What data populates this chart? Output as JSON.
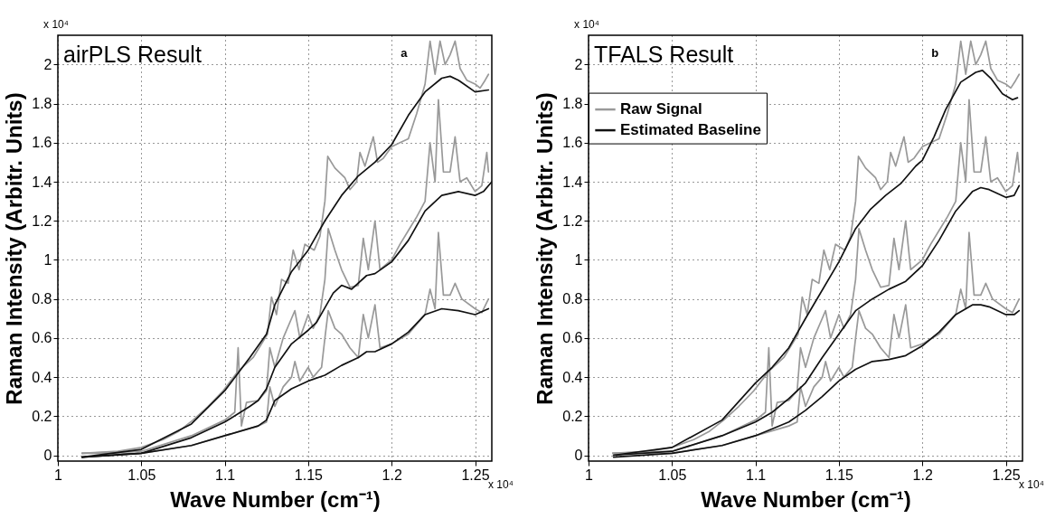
{
  "chart_data": [
    {
      "type": "line",
      "title": "airPLS Result",
      "xlabel": "Wave Number (cm⁻¹)",
      "ylabel": "Raman Intensity (Arbitr. Units)",
      "annotations": [
        "a",
        "x 10⁴",
        "x 10⁴"
      ],
      "xlim": [
        1,
        1.26
      ],
      "ylim": [
        -0.03,
        2.15
      ],
      "xticks": [
        1,
        1.05,
        1.1,
        1.15,
        1.2,
        1.25
      ],
      "yticks": [
        0,
        0.2,
        0.4,
        0.6,
        0.8,
        1,
        1.2,
        1.4,
        1.6,
        1.8,
        2
      ],
      "grid": true,
      "line_style": "solid",
      "series": [
        {
          "color": "#999999",
          "x": [
            1.0145,
            1.036,
            1.05,
            1.063,
            1.072,
            1.081,
            1.09,
            1.099,
            1.108,
            1.117,
            1.1256,
            1.128,
            1.131,
            1.134,
            1.138,
            1.141,
            1.1445,
            1.148,
            1.1536,
            1.157,
            1.16,
            1.1617,
            1.166,
            1.172,
            1.175,
            1.179,
            1.181,
            1.184,
            1.189,
            1.1915,
            1.195,
            1.2,
            1.205,
            1.21,
            1.215,
            1.22,
            1.223,
            1.226,
            1.229,
            1.232,
            1.235,
            1.238,
            1.241,
            1.245,
            1.25,
            1.253,
            1.256,
            1.258
          ],
          "values": [
            0.01,
            0.02,
            0.04,
            0.08,
            0.12,
            0.18,
            0.25,
            0.33,
            0.43,
            0.5,
            0.62,
            0.81,
            0.72,
            0.9,
            0.88,
            1.05,
            0.95,
            1.08,
            1.05,
            1.12,
            1.3,
            1.53,
            1.47,
            1.42,
            1.36,
            1.4,
            1.55,
            1.48,
            1.63,
            1.5,
            1.52,
            1.58,
            1.6,
            1.62,
            1.75,
            1.9,
            2.12,
            1.95,
            2.12,
            2.0,
            2.05,
            2.12,
            1.98,
            1.92,
            1.9,
            1.88,
            1.92,
            1.95
          ]
        },
        {
          "color": "#999999",
          "x": [
            1.0145,
            1.05,
            1.08,
            1.1,
            1.106,
            1.108,
            1.11,
            1.113,
            1.12,
            1.125,
            1.127,
            1.13,
            1.135,
            1.14,
            1.142,
            1.145,
            1.15,
            1.153,
            1.157,
            1.16,
            1.162,
            1.166,
            1.17,
            1.175,
            1.18,
            1.183,
            1.186,
            1.19,
            1.193,
            1.2,
            1.205,
            1.21,
            1.215,
            1.22,
            1.223,
            1.226,
            1.228,
            1.231,
            1.235,
            1.238,
            1.241,
            1.245,
            1.25,
            1.254,
            1.257,
            1.258
          ],
          "values": [
            0.01,
            0.02,
            0.1,
            0.18,
            0.22,
            0.55,
            0.15,
            0.27,
            0.28,
            0.33,
            0.55,
            0.45,
            0.6,
            0.7,
            0.74,
            0.6,
            0.72,
            0.65,
            0.72,
            0.9,
            1.16,
            1.05,
            0.95,
            0.86,
            0.87,
            1.11,
            0.95,
            1.2,
            0.95,
            1.0,
            1.08,
            1.15,
            1.22,
            1.3,
            1.6,
            1.4,
            1.82,
            1.45,
            1.45,
            1.63,
            1.4,
            1.42,
            1.35,
            1.38,
            1.55,
            1.45
          ]
        },
        {
          "color": "#999999",
          "x": [
            1.0145,
            1.05,
            1.08,
            1.1,
            1.12,
            1.125,
            1.127,
            1.13,
            1.135,
            1.14,
            1.142,
            1.145,
            1.15,
            1.153,
            1.158,
            1.16,
            1.162,
            1.166,
            1.17,
            1.175,
            1.18,
            1.183,
            1.186,
            1.19,
            1.193,
            1.2,
            1.21,
            1.215,
            1.22,
            1.223,
            1.226,
            1.228,
            1.231,
            1.235,
            1.238,
            1.242,
            1.25,
            1.254,
            1.258
          ],
          "values": [
            0.01,
            0.01,
            0.05,
            0.1,
            0.15,
            0.17,
            0.35,
            0.25,
            0.35,
            0.4,
            0.48,
            0.38,
            0.45,
            0.4,
            0.45,
            0.6,
            0.74,
            0.65,
            0.62,
            0.55,
            0.5,
            0.72,
            0.6,
            0.77,
            0.55,
            0.57,
            0.62,
            0.67,
            0.72,
            0.85,
            0.75,
            1.14,
            0.82,
            0.82,
            0.88,
            0.8,
            0.75,
            0.73,
            0.8
          ]
        },
        {
          "color": "#111111",
          "x": [
            1.0145,
            1.05,
            1.08,
            1.1,
            1.115,
            1.125,
            1.13,
            1.14,
            1.15,
            1.16,
            1.17,
            1.18,
            1.19,
            1.2,
            1.21,
            1.22,
            1.23,
            1.235,
            1.24,
            1.25,
            1.258
          ],
          "values": [
            -0.01,
            0.03,
            0.16,
            0.33,
            0.5,
            0.62,
            0.77,
            0.94,
            1.05,
            1.2,
            1.33,
            1.43,
            1.5,
            1.59,
            1.74,
            1.86,
            1.93,
            1.94,
            1.92,
            1.86,
            1.87
          ]
        },
        {
          "color": "#111111",
          "x": [
            1.0145,
            1.05,
            1.08,
            1.1,
            1.115,
            1.12,
            1.125,
            1.13,
            1.14,
            1.15,
            1.155,
            1.165,
            1.17,
            1.176,
            1.185,
            1.19,
            1.2,
            1.21,
            1.22,
            1.23,
            1.24,
            1.25,
            1.255,
            1.26
          ],
          "values": [
            -0.01,
            0.01,
            0.09,
            0.17,
            0.25,
            0.28,
            0.34,
            0.45,
            0.57,
            0.64,
            0.68,
            0.83,
            0.87,
            0.85,
            0.92,
            0.93,
            0.99,
            1.1,
            1.25,
            1.33,
            1.35,
            1.33,
            1.35,
            1.4
          ]
        },
        {
          "color": "#111111",
          "x": [
            1.0145,
            1.05,
            1.08,
            1.1,
            1.12,
            1.125,
            1.13,
            1.14,
            1.15,
            1.16,
            1.17,
            1.18,
            1.185,
            1.19,
            1.2,
            1.21,
            1.22,
            1.23,
            1.24,
            1.25,
            1.258
          ],
          "values": [
            -0.01,
            0.01,
            0.05,
            0.1,
            0.15,
            0.18,
            0.28,
            0.34,
            0.38,
            0.41,
            0.46,
            0.5,
            0.53,
            0.53,
            0.57,
            0.63,
            0.72,
            0.75,
            0.74,
            0.72,
            0.75
          ]
        }
      ]
    },
    {
      "type": "line",
      "title": "TFALS Result",
      "xlabel": "Wave Number (cm⁻¹)",
      "ylabel": "Raman Intensity (Arbitr. Units)",
      "annotations": [
        "b",
        "x 10⁴",
        "x 10⁴"
      ],
      "xlim": [
        1,
        1.26
      ],
      "ylim": [
        -0.03,
        2.15
      ],
      "xticks": [
        1,
        1.05,
        1.1,
        1.15,
        1.2,
        1.25
      ],
      "yticks": [
        0,
        0.2,
        0.4,
        0.6,
        0.8,
        1,
        1.2,
        1.4,
        1.6,
        1.8,
        2
      ],
      "grid": true,
      "line_style": "solid",
      "legend": "top left",
      "series": [
        {
          "name": "Raw Signal",
          "color": "#999999",
          "x": [
            1.0145,
            1.036,
            1.05,
            1.063,
            1.072,
            1.081,
            1.09,
            1.099,
            1.108,
            1.117,
            1.1256,
            1.128,
            1.131,
            1.134,
            1.138,
            1.141,
            1.1445,
            1.148,
            1.1536,
            1.157,
            1.16,
            1.1617,
            1.166,
            1.172,
            1.175,
            1.179,
            1.181,
            1.184,
            1.189,
            1.1915,
            1.195,
            1.2,
            1.205,
            1.21,
            1.215,
            1.22,
            1.223,
            1.226,
            1.229,
            1.232,
            1.235,
            1.238,
            1.241,
            1.245,
            1.25,
            1.253,
            1.256,
            1.258
          ],
          "values": [
            0.01,
            0.02,
            0.04,
            0.08,
            0.12,
            0.18,
            0.25,
            0.33,
            0.43,
            0.5,
            0.62,
            0.81,
            0.72,
            0.9,
            0.88,
            1.05,
            0.95,
            1.08,
            1.05,
            1.12,
            1.3,
            1.53,
            1.47,
            1.42,
            1.36,
            1.4,
            1.55,
            1.48,
            1.63,
            1.5,
            1.52,
            1.58,
            1.6,
            1.62,
            1.75,
            1.9,
            2.12,
            1.95,
            2.12,
            2.0,
            2.05,
            2.12,
            1.98,
            1.92,
            1.9,
            1.88,
            1.92,
            1.95
          ]
        },
        {
          "color": "#999999",
          "x": [
            1.0145,
            1.05,
            1.08,
            1.1,
            1.106,
            1.108,
            1.11,
            1.113,
            1.12,
            1.125,
            1.127,
            1.13,
            1.135,
            1.14,
            1.142,
            1.145,
            1.15,
            1.153,
            1.157,
            1.16,
            1.162,
            1.166,
            1.17,
            1.175,
            1.18,
            1.183,
            1.186,
            1.19,
            1.193,
            1.2,
            1.205,
            1.21,
            1.215,
            1.22,
            1.223,
            1.226,
            1.228,
            1.231,
            1.235,
            1.238,
            1.241,
            1.245,
            1.25,
            1.254,
            1.257,
            1.258
          ],
          "values": [
            0.01,
            0.02,
            0.1,
            0.18,
            0.22,
            0.55,
            0.15,
            0.27,
            0.28,
            0.33,
            0.55,
            0.45,
            0.6,
            0.7,
            0.74,
            0.6,
            0.72,
            0.65,
            0.72,
            0.9,
            1.16,
            1.05,
            0.95,
            0.86,
            0.87,
            1.11,
            0.95,
            1.2,
            0.95,
            1.0,
            1.08,
            1.15,
            1.22,
            1.3,
            1.6,
            1.4,
            1.82,
            1.45,
            1.45,
            1.63,
            1.4,
            1.42,
            1.35,
            1.38,
            1.55,
            1.45
          ]
        },
        {
          "color": "#999999",
          "x": [
            1.0145,
            1.05,
            1.08,
            1.1,
            1.12,
            1.125,
            1.127,
            1.13,
            1.135,
            1.14,
            1.142,
            1.145,
            1.15,
            1.153,
            1.158,
            1.16,
            1.162,
            1.166,
            1.17,
            1.175,
            1.18,
            1.183,
            1.186,
            1.19,
            1.193,
            1.2,
            1.21,
            1.215,
            1.22,
            1.223,
            1.226,
            1.228,
            1.231,
            1.235,
            1.238,
            1.242,
            1.25,
            1.254,
            1.258
          ],
          "values": [
            0.01,
            0.01,
            0.05,
            0.1,
            0.15,
            0.17,
            0.35,
            0.25,
            0.35,
            0.4,
            0.48,
            0.38,
            0.45,
            0.4,
            0.45,
            0.6,
            0.74,
            0.65,
            0.62,
            0.55,
            0.5,
            0.72,
            0.6,
            0.77,
            0.55,
            0.57,
            0.62,
            0.67,
            0.72,
            0.85,
            0.75,
            1.14,
            0.82,
            0.82,
            0.88,
            0.8,
            0.75,
            0.73,
            0.8
          ]
        },
        {
          "name": "Estimated Baseline",
          "color": "#111111",
          "x": [
            1.015,
            1.05,
            1.08,
            1.1,
            1.11,
            1.12,
            1.13,
            1.15,
            1.16,
            1.169,
            1.178,
            1.187,
            1.196,
            1.2,
            1.207,
            1.214,
            1.223,
            1.232,
            1.236,
            1.241,
            1.248,
            1.254,
            1.257
          ],
          "values": [
            0,
            0.04,
            0.18,
            0.37,
            0.45,
            0.55,
            0.7,
            0.99,
            1.16,
            1.26,
            1.33,
            1.39,
            1.48,
            1.51,
            1.63,
            1.77,
            1.91,
            1.96,
            1.97,
            1.93,
            1.85,
            1.82,
            1.83
          ]
        },
        {
          "color": "#111111",
          "x": [
            1.015,
            1.05,
            1.08,
            1.1,
            1.11,
            1.12,
            1.13,
            1.14,
            1.15,
            1.16,
            1.17,
            1.18,
            1.19,
            1.2,
            1.21,
            1.22,
            1.23,
            1.235,
            1.24,
            1.25,
            1.255,
            1.258
          ],
          "values": [
            0,
            0.02,
            0.1,
            0.17,
            0.22,
            0.29,
            0.37,
            0.5,
            0.62,
            0.74,
            0.8,
            0.85,
            0.89,
            0.97,
            1.1,
            1.25,
            1.35,
            1.37,
            1.36,
            1.32,
            1.33,
            1.38
          ]
        },
        {
          "color": "#111111",
          "x": [
            1.015,
            1.05,
            1.08,
            1.1,
            1.12,
            1.13,
            1.14,
            1.15,
            1.16,
            1.17,
            1.18,
            1.19,
            1.2,
            1.21,
            1.22,
            1.23,
            1.235,
            1.24,
            1.25,
            1.255,
            1.258
          ],
          "values": [
            -0.01,
            0.01,
            0.05,
            0.1,
            0.17,
            0.23,
            0.3,
            0.38,
            0.44,
            0.48,
            0.49,
            0.51,
            0.56,
            0.63,
            0.72,
            0.77,
            0.77,
            0.76,
            0.72,
            0.72,
            0.74
          ]
        }
      ]
    }
  ]
}
